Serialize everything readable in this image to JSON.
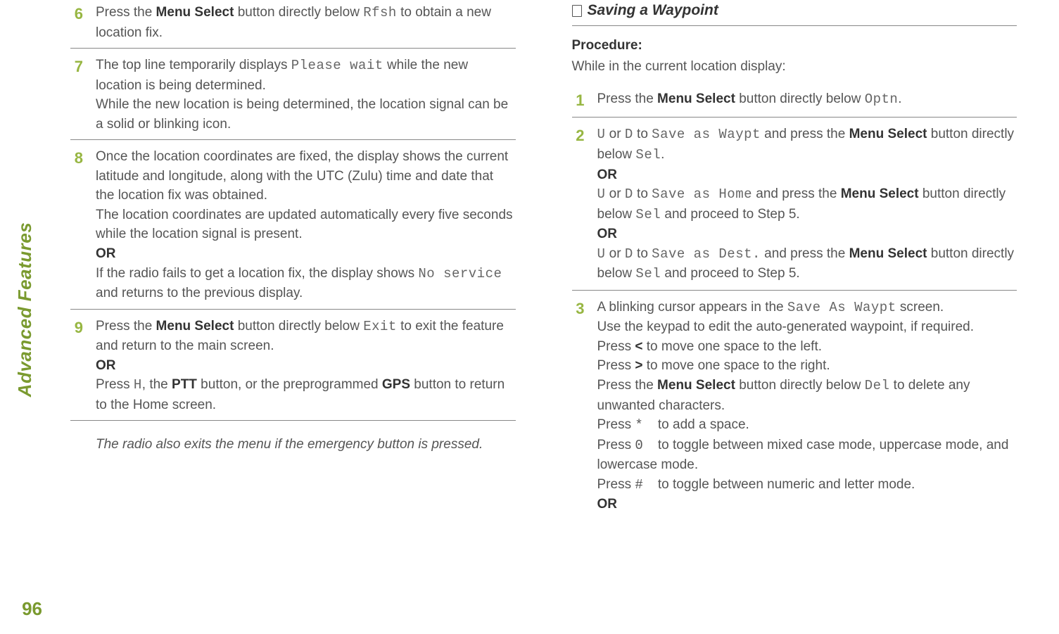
{
  "sidebar": {
    "label": "Advanced Features",
    "page_number": "96"
  },
  "colors": {
    "accent": "#7a9a2f",
    "step_num": "#97b642",
    "text": "#555555",
    "strong": "#333333",
    "rule": "#888888"
  },
  "left": {
    "steps": [
      {
        "n": "6",
        "parts": [
          {
            "t": "Press the "
          },
          {
            "t": "Menu Select",
            "b": true
          },
          {
            "t": " button directly below "
          },
          {
            "t": "Rfsh",
            "m": true
          },
          {
            "t": " to obtain a new location fix."
          }
        ]
      },
      {
        "n": "7",
        "parts": [
          {
            "t": "The top line temporarily displays "
          },
          {
            "t": "Please wait",
            "m": true
          },
          {
            "t": " while the new location is being determined."
          },
          {
            "br": true
          },
          {
            "t": "While the new location is being determined, the location signal can be a solid or blinking icon."
          }
        ]
      },
      {
        "n": "8",
        "parts": [
          {
            "t": "Once the location coordinates are fixed, the display shows the current latitude and longitude, along with the UTC (Zulu) time and date that the location fix was obtained."
          },
          {
            "br": true
          },
          {
            "t": "The location coordinates are updated automatically every five seconds while the location signal is present."
          },
          {
            "br": true
          },
          {
            "t": "OR",
            "or": true
          },
          {
            "br": true
          },
          {
            "t": "If the radio fails to get a location fix, the display shows "
          },
          {
            "t": "No service",
            "m": true
          },
          {
            "t": " and returns to the previous display."
          }
        ]
      },
      {
        "n": "9",
        "parts": [
          {
            "t": "Press the "
          },
          {
            "t": "Menu Select",
            "b": true
          },
          {
            "t": " button directly below "
          },
          {
            "t": "Exit",
            "m": true
          },
          {
            "t": " to exit the feature and return to the main screen."
          },
          {
            "br": true
          },
          {
            "t": "OR",
            "or": true
          },
          {
            "br": true
          },
          {
            "t": "Press "
          },
          {
            "t": "H",
            "m": true
          },
          {
            "t": ", the "
          },
          {
            "t": "PTT",
            "b": true
          },
          {
            "t": " button, or the preprogrammed "
          },
          {
            "t": "GPS",
            "b": true
          },
          {
            "t": " button to return to the Home screen."
          }
        ]
      }
    ],
    "note": "The radio also exits the menu if the emergency button is pressed."
  },
  "right": {
    "title": "Saving a Waypoint",
    "proc_label": "Procedure:",
    "proc_intro": "While in the current location display:",
    "steps": [
      {
        "n": "1",
        "parts": [
          {
            "t": "Press the "
          },
          {
            "t": "Menu Select",
            "b": true
          },
          {
            "t": " button directly below "
          },
          {
            "t": "Optn",
            "m": true
          },
          {
            "t": "."
          }
        ]
      },
      {
        "n": "2",
        "parts": [
          {
            "t": "U",
            "m": true
          },
          {
            "t": " or "
          },
          {
            "t": "D",
            "m": true
          },
          {
            "t": " to "
          },
          {
            "t": "Save as Waypt",
            "m": true
          },
          {
            "t": " and press the "
          },
          {
            "t": "Menu Select",
            "b": true
          },
          {
            "t": " button directly below "
          },
          {
            "t": "Sel",
            "m": true
          },
          {
            "t": "."
          },
          {
            "br": true
          },
          {
            "t": "OR",
            "or": true
          },
          {
            "br": true
          },
          {
            "t": "U",
            "m": true
          },
          {
            "t": " or "
          },
          {
            "t": "D",
            "m": true
          },
          {
            "t": " to "
          },
          {
            "t": "Save as Home",
            "m": true
          },
          {
            "t": " and press the "
          },
          {
            "t": "Menu Select",
            "b": true
          },
          {
            "t": " button directly below "
          },
          {
            "t": "Sel",
            "m": true
          },
          {
            "t": " and proceed to Step 5."
          },
          {
            "br": true
          },
          {
            "t": "OR",
            "or": true
          },
          {
            "br": true
          },
          {
            "t": "U",
            "m": true
          },
          {
            "t": " or "
          },
          {
            "t": "D",
            "m": true
          },
          {
            "t": " to "
          },
          {
            "t": "Save as Dest.",
            "m": true
          },
          {
            "t": " and press the "
          },
          {
            "t": "Menu Select",
            "b": true
          },
          {
            "t": " button directly below "
          },
          {
            "t": "Sel",
            "m": true
          },
          {
            "t": " and proceed to Step 5."
          }
        ]
      },
      {
        "n": "3",
        "nosep": true,
        "parts": [
          {
            "t": "A blinking cursor appears in the "
          },
          {
            "t": "Save As Waypt",
            "m": true
          },
          {
            "t": " screen."
          },
          {
            "br": true
          },
          {
            "t": "Use the keypad to edit the auto-generated waypoint, if required."
          },
          {
            "br": true
          },
          {
            "t": "Press "
          },
          {
            "t": "<",
            "b": true
          },
          {
            "t": " to move one space to the left."
          },
          {
            "br": true
          },
          {
            "t": "Press "
          },
          {
            "t": ">",
            "b": true
          },
          {
            "t": " to move one space to the right."
          },
          {
            "br": true
          },
          {
            "t": "Press the "
          },
          {
            "t": "Menu Select",
            "b": true
          },
          {
            "t": " button directly below "
          },
          {
            "t": "Del",
            "m": true
          },
          {
            "t": " to delete any unwanted characters."
          },
          {
            "br": true
          },
          {
            "t": "Press "
          },
          {
            "t": "*",
            "k": true
          },
          {
            "t": "    to add a space."
          },
          {
            "br": true
          },
          {
            "t": "Press "
          },
          {
            "t": "0",
            "k": true
          },
          {
            "t": "    to toggle between mixed case mode, uppercase mode, and lowercase mode."
          },
          {
            "br": true
          },
          {
            "t": "Press "
          },
          {
            "t": "#",
            "k": true
          },
          {
            "t": "    to toggle between numeric and letter mode."
          },
          {
            "br": true
          },
          {
            "t": "OR",
            "or": true
          }
        ]
      }
    ]
  }
}
